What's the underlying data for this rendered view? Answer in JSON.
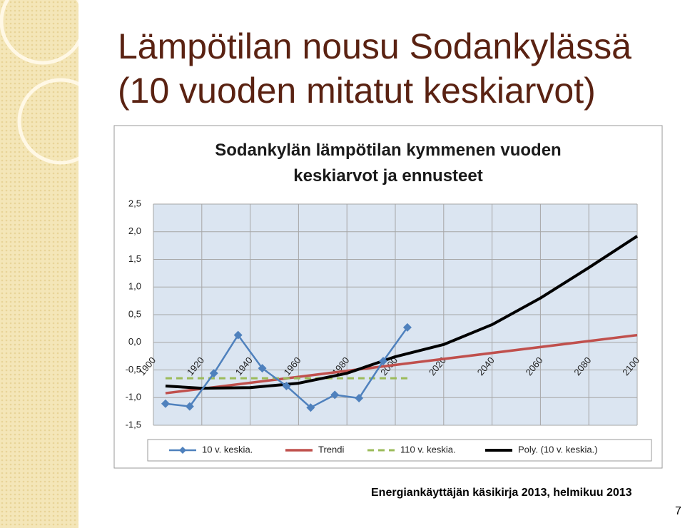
{
  "slide": {
    "title_lines": [
      "Lämpötilan nousu Sodankylässä",
      "(10 vuoden mitatut keskiarvot)"
    ],
    "footer": "Energiankäyttäjän käsikirja 2013, helmikuu 2013",
    "page_number": "7"
  },
  "chart_data": {
    "type": "line",
    "title_lines": [
      "Sodankylän lämpötilan kymmenen vuoden",
      "keskiarvot ja ennusteet"
    ],
    "xlim": [
      1900,
      2100
    ],
    "xticks": [
      1900,
      1920,
      1940,
      1960,
      1980,
      2000,
      2020,
      2040,
      2060,
      2080,
      2100
    ],
    "ylim": [
      -1.5,
      2.5
    ],
    "yticks": [
      {
        "value": -1.5,
        "label": "-1,5"
      },
      {
        "value": -1.0,
        "label": "-1,0"
      },
      {
        "value": -0.5,
        "label": "-0,5"
      },
      {
        "value": 0,
        "label": "0,0"
      },
      {
        "value": 0.5,
        "label": "0,5"
      },
      {
        "value": 1.0,
        "label": "1,0"
      },
      {
        "value": 1.5,
        "label": "1,5"
      },
      {
        "value": 2.0,
        "label": "2,0"
      },
      {
        "value": 2.5,
        "label": "2,5"
      }
    ],
    "grid": true,
    "legend": "bottom",
    "series": [
      {
        "name": "10 v. keskia.",
        "color": "#4f81bd",
        "marker": "diamond",
        "x": [
          1905,
          1915,
          1925,
          1935,
          1945,
          1955,
          1965,
          1975,
          1985,
          1995,
          2005
        ],
        "values": [
          -1.11,
          -1.16,
          -0.56,
          0.13,
          -0.47,
          -0.79,
          -1.18,
          -0.95,
          -1.01,
          -0.34,
          0.27
        ]
      },
      {
        "name": "Trendi",
        "color": "#c0504d",
        "x": [
          1905,
          2100
        ],
        "values": [
          -0.92,
          0.13
        ]
      },
      {
        "name": "110 v. keskia.",
        "color": "#9bbb59",
        "dashed": true,
        "x": [
          1905,
          2005
        ],
        "values": [
          -0.65,
          -0.65
        ]
      },
      {
        "name": "Poly. (10 v. keskia.)",
        "color": "#000000",
        "x": [
          1905,
          1920,
          1940,
          1960,
          1980,
          2000,
          2020,
          2040,
          2060,
          2080,
          2100
        ],
        "values": [
          -0.79,
          -0.83,
          -0.82,
          -0.74,
          -0.56,
          -0.26,
          -0.04,
          0.32,
          0.8,
          1.35,
          1.92
        ]
      }
    ]
  }
}
